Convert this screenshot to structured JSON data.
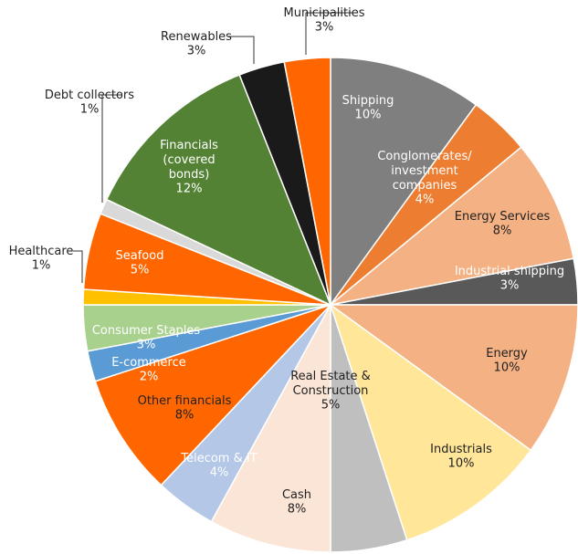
{
  "chart_data": {
    "type": "pie",
    "categories": [
      "Shipping",
      "Conglomerates/\ninvestment\ncompanies",
      "Energy Services",
      "Industrial shipping",
      "Energy",
      "Industrials",
      "Real Estate &\nConstruction",
      "Cash",
      "Telecom & IT",
      "Other financials",
      "E-commerce",
      "Consumer Staples",
      "Healthcare",
      "Seafood",
      "Debt collectors",
      "Financials\n(covered\nbonds)",
      "Renewables",
      "Municipalities"
    ],
    "values": [
      10,
      4,
      8,
      3,
      10,
      10,
      5,
      8,
      4,
      8,
      2,
      3,
      1,
      5,
      1,
      12,
      3,
      3
    ],
    "value_labels": [
      "10%",
      "4%",
      "8%",
      "3%",
      "10%",
      "10%",
      "5%",
      "8%",
      "4%",
      "8%",
      "2%",
      "3%",
      "1%",
      "5%",
      "1%",
      "12%",
      "3%",
      "3%"
    ],
    "colors": [
      "#7f7f7f",
      "#ed7d31",
      "#f4b183",
      "#595959",
      "#f4b183",
      "#ffe699",
      "#bfbfbf",
      "#fbe5d6",
      "#b4c7e7",
      "#ff6600",
      "#5b9bd5",
      "#a9d18e",
      "#ffc000",
      "#ff6600",
      "#d9d9d9",
      "#548235",
      "#1a1a1a",
      "#ff6600"
    ]
  }
}
